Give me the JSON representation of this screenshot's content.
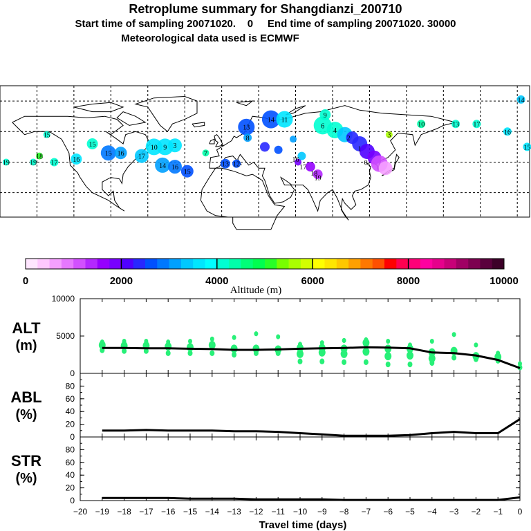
{
  "header": {
    "title": "Retroplume summary for Shangdianzi_200710",
    "subtitle": "Start time of sampling 20071020.    0     End time of sampling 20071020. 30000",
    "meteo": "Meteorological data used is ECMWF"
  },
  "colorbar": {
    "label": "Altitude (m)",
    "ticks": [
      "0",
      "2000",
      "4000",
      "6000",
      "8000",
      "10000"
    ],
    "colors": [
      "#ffe6ff",
      "#ffc8ff",
      "#f5a0ff",
      "#e678ff",
      "#d250ff",
      "#b428ff",
      "#9600ff",
      "#7800ff",
      "#5000ff",
      "#2828ff",
      "#0050ff",
      "#0078ff",
      "#00a0ff",
      "#00c8ff",
      "#00e6ff",
      "#00ffff",
      "#00ffd2",
      "#00ffaa",
      "#00ff78",
      "#00ff50",
      "#28ff28",
      "#78ff00",
      "#aaff00",
      "#d2ff00",
      "#ffff00",
      "#ffe600",
      "#ffc800",
      "#ffa000",
      "#ff7800",
      "#ff5000",
      "#ff0000",
      "#ff0050",
      "#ff0078",
      "#ff00a0",
      "#e6008c",
      "#c80078",
      "#a00064",
      "#7d0050",
      "#5a003c",
      "#3c0028"
    ]
  },
  "map": {
    "plume_numbers": [
      {
        "n": "19",
        "lon": -175,
        "lat": 40
      },
      {
        "n": "19",
        "lon": -153,
        "lat": 40
      },
      {
        "n": "17",
        "lon": -136,
        "lat": 40
      },
      {
        "n": "18",
        "lon": -148,
        "lat": 44
      },
      {
        "n": "16",
        "lon": -118,
        "lat": 42
      },
      {
        "n": "15",
        "lon": -142,
        "lat": 58
      },
      {
        "n": "15",
        "lon": -105,
        "lat": 52
      },
      {
        "n": "15",
        "lon": -92,
        "lat": 46
      },
      {
        "n": "16",
        "lon": -82,
        "lat": 46
      },
      {
        "n": "17",
        "lon": -65,
        "lat": 44
      },
      {
        "n": "10",
        "lon": -55,
        "lat": 50
      },
      {
        "n": "9",
        "lon": -46,
        "lat": 50
      },
      {
        "n": "3",
        "lon": -38,
        "lat": 51
      },
      {
        "n": "14",
        "lon": -48,
        "lat": 38
      },
      {
        "n": "16",
        "lon": -38,
        "lat": 37
      },
      {
        "n": "15",
        "lon": -28,
        "lat": 34
      },
      {
        "n": "7",
        "lon": -13,
        "lat": 46
      },
      {
        "n": "13",
        "lon": 3,
        "lat": 39
      },
      {
        "n": "12",
        "lon": 12,
        "lat": 39
      },
      {
        "n": "13",
        "lon": 20,
        "lat": 63
      },
      {
        "n": "8",
        "lon": 21,
        "lat": 56
      },
      {
        "n": "14",
        "lon": 40,
        "lat": 68
      },
      {
        "n": "11",
        "lon": 51,
        "lat": 68
      },
      {
        "n": "9",
        "lon": 84,
        "lat": 71
      },
      {
        "n": "6",
        "lon": 82,
        "lat": 64
      },
      {
        "n": "4",
        "lon": 92,
        "lat": 61
      },
      {
        "n": "3",
        "lon": 136,
        "lat": 58
      },
      {
        "n": "2",
        "lon": 103,
        "lat": 56
      },
      {
        "n": "1",
        "lon": 112,
        "lat": 49
      },
      {
        "n": "0",
        "lon": 117,
        "lat": 40
      },
      {
        "n": "10",
        "lon": 162,
        "lat": 65
      },
      {
        "n": "13",
        "lon": 190,
        "lat": 65
      },
      {
        "n": "17",
        "lon": 207,
        "lat": 65
      },
      {
        "n": "16",
        "lon": 232,
        "lat": 60
      },
      {
        "n": "14",
        "lon": 243,
        "lat": 81
      },
      {
        "n": "15",
        "lon": 248,
        "lat": 50
      },
      {
        "n": "16",
        "lon": 60,
        "lat": 42
      },
      {
        "n": "17",
        "lon": 66,
        "lat": 37
      },
      {
        "n": "18",
        "lon": 75,
        "lat": 33
      },
      {
        "n": "19",
        "lon": 78,
        "lat": 30
      }
    ]
  },
  "chart_data": [
    {
      "type": "scatter",
      "panel": "ALT",
      "ylabel": "ALT",
      "yunit": "(m)",
      "ylim": [
        0,
        10000
      ],
      "yticks": [
        "10000",
        "5000",
        "0"
      ],
      "x": [
        -19,
        -18,
        -17,
        -16,
        -15,
        -14,
        -13,
        -12,
        -11,
        -10,
        -9,
        -8,
        -7,
        -6,
        -5,
        -4,
        -3,
        -2,
        -1,
        0
      ],
      "mean_line": [
        3400,
        3400,
        3350,
        3350,
        3300,
        3250,
        3150,
        3150,
        3200,
        3300,
        3350,
        3400,
        3500,
        3450,
        3350,
        2800,
        2700,
        2400,
        1800,
        700
      ],
      "clusters": [
        [
          4200,
          3800,
          3100
        ],
        [
          4300,
          3700,
          3000
        ],
        [
          4300,
          3700,
          3000
        ],
        [
          4200,
          3600,
          2700
        ],
        [
          4300,
          3500,
          2700
        ],
        [
          4600,
          3800,
          2700
        ],
        [
          4800,
          3300,
          2500
        ],
        [
          5300,
          3300,
          2700
        ],
        [
          4900,
          3200,
          2700
        ],
        [
          3900,
          3400,
          2600,
          1600
        ],
        [
          4100,
          3400,
          2800,
          1600
        ],
        [
          4400,
          3300,
          2600,
          1500
        ],
        [
          4500,
          4100,
          2900,
          1500
        ],
        [
          4300,
          3300,
          2300,
          1200
        ],
        [
          3800,
          3300,
          2400,
          1200
        ],
        [
          4300,
          2800,
          2000,
          1400
        ],
        [
          5200,
          3000,
          2100
        ],
        [
          3800,
          2300,
          1900
        ],
        [
          2700,
          2200,
          1700
        ],
        [
          1300,
          800
        ]
      ]
    },
    {
      "type": "line",
      "panel": "ABL",
      "ylabel": "ABL",
      "yunit": "(%)",
      "ylim": [
        0,
        100
      ],
      "yticks": [
        "80",
        "60",
        "40",
        "20",
        "0"
      ],
      "x": [
        -19,
        -18,
        -17,
        -16,
        -15,
        -14,
        -13,
        -12,
        -11,
        -10,
        -9,
        -8,
        -7,
        -6,
        -5,
        -4,
        -3,
        -2,
        -1,
        0
      ],
      "values": [
        10,
        10,
        11,
        10,
        10,
        10,
        9,
        9,
        8,
        6,
        4,
        2,
        2,
        2,
        3,
        6,
        8,
        6,
        6,
        28
      ]
    },
    {
      "type": "line",
      "panel": "STR",
      "ylabel": "STR",
      "yunit": "(%)",
      "ylim": [
        0,
        100
      ],
      "yticks": [
        "80",
        "60",
        "40",
        "20",
        "0"
      ],
      "x": [
        -19,
        -18,
        -17,
        -16,
        -15,
        -14,
        -13,
        -12,
        -11,
        -10,
        -9,
        -8,
        -7,
        -6,
        -5,
        -4,
        -3,
        -2,
        -1,
        0
      ],
      "values": [
        4,
        4,
        4,
        4,
        3,
        3,
        3,
        2,
        2,
        2,
        2,
        1,
        1,
        1,
        1,
        1,
        1,
        1,
        1,
        5
      ]
    }
  ],
  "xaxis": {
    "label": "Travel time (days)",
    "ticks": [
      "−20",
      "−19",
      "−18",
      "−17",
      "−16",
      "−15",
      "−14",
      "−13",
      "−12",
      "−11",
      "−10",
      "−9",
      "−8",
      "−7",
      "−6",
      "−5",
      "−4",
      "−3",
      "−2",
      "−1",
      "0"
    ]
  }
}
